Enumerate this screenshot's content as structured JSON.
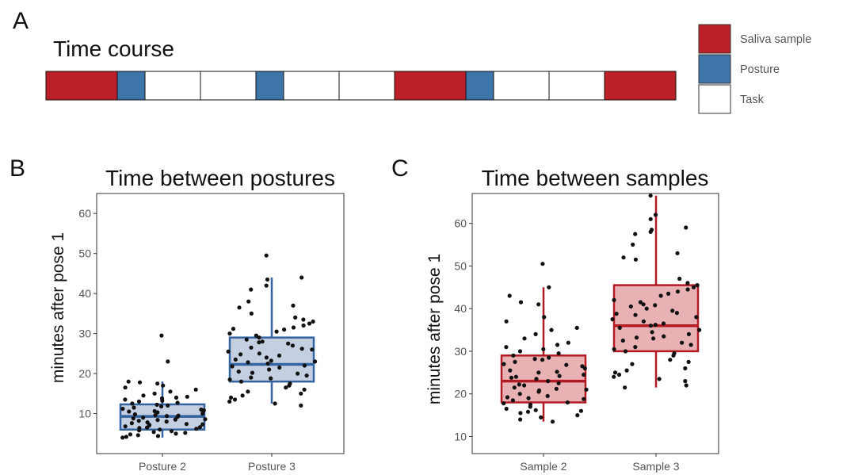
{
  "colors": {
    "saliva": "#bb1f28",
    "posture": "#3e75a8",
    "task": "#ffffff",
    "box_blue_fill": "#c4cfe2",
    "box_blue_line": "#3464a0",
    "box_red_fill": "#e8b2b5",
    "box_red_line": "#b31b24",
    "dot": "#111111",
    "frame": "#333333"
  },
  "panel_a": {
    "letter": "A",
    "title": "Time course",
    "sequence": [
      "Saliva sample",
      "Posture",
      "Task",
      "Task",
      "Posture",
      "Task",
      "Task",
      "Saliva sample",
      "Posture",
      "Task",
      "Task",
      "Saliva sample"
    ],
    "legend": [
      {
        "label": "Saliva sample",
        "color_key": "saliva"
      },
      {
        "label": "Posture",
        "color_key": "posture"
      },
      {
        "label": "Task",
        "color_key": "task"
      }
    ]
  },
  "chart_data": [
    {
      "type": "box",
      "panel": "B",
      "title": "Time between postures",
      "ylabel": "minutes after pose 1",
      "xlabel": "",
      "ylim": [
        0,
        65
      ],
      "yticks": [
        10,
        20,
        30,
        40,
        50,
        60
      ],
      "categories": [
        "Posture 2",
        "Posture 3"
      ],
      "boxes": [
        {
          "category": "Posture 2",
          "min": 4,
          "q1": 6,
          "median": 9.3,
          "q3": 12.3,
          "max": 18
        },
        {
          "category": "Posture 3",
          "min": 12.5,
          "q1": 18,
          "median": 22.3,
          "q3": 29,
          "max": 44
        }
      ],
      "points": [
        [
          29.5,
          23,
          18,
          17.8,
          17.5,
          17,
          16.5,
          16,
          15.5,
          15,
          14.5,
          14.2,
          14,
          13.5,
          13.2,
          13,
          12.7,
          12.5,
          12,
          11.8,
          11.5,
          11.2,
          11,
          10.8,
          10.5,
          10.3,
          10,
          9.8,
          9.6,
          9.4,
          9.2,
          9,
          8.8,
          8.6,
          8.4,
          8.2,
          8,
          7.8,
          7.6,
          7.4,
          7.2,
          7,
          6.8,
          6.6,
          6.4,
          6.2,
          6,
          5.8,
          5.6,
          5.4,
          5.2,
          5,
          4.8,
          4.6,
          4.4,
          4.2,
          4,
          10.6,
          9.5,
          8.5,
          7.3,
          6.5,
          12.2,
          13.8
        ],
        [
          49.5,
          44,
          43.5,
          42,
          41,
          38,
          37,
          36.5,
          35,
          34,
          33.5,
          33,
          32.5,
          32,
          31.5,
          31,
          30.5,
          30,
          29.5,
          29,
          28.5,
          28,
          27.5,
          27,
          26.5,
          26,
          25.5,
          25,
          24.5,
          24,
          23.5,
          23,
          22.5,
          22,
          21.5,
          21,
          20.5,
          20,
          19.5,
          19,
          18.5,
          18,
          17.5,
          17,
          16.5,
          16,
          15.5,
          15,
          14.5,
          14,
          13.5,
          13,
          12.5,
          12,
          26.2,
          24.8,
          23.2,
          21.8,
          20.2,
          18.8,
          31.2,
          27.8,
          22.8
        ]
      ]
    },
    {
      "type": "box",
      "panel": "C",
      "title": "Time between samples",
      "ylabel": "minutes after pose 1",
      "xlabel": "",
      "ylim": [
        6,
        67
      ],
      "yticks": [
        10,
        20,
        30,
        40,
        50,
        60
      ],
      "categories": [
        "Sample 2",
        "Sample 3"
      ],
      "boxes": [
        {
          "category": "Sample 2",
          "min": 13.5,
          "q1": 18,
          "median": 23,
          "q3": 29,
          "max": 45
        },
        {
          "category": "Sample 3",
          "min": 21.5,
          "q1": 30,
          "median": 36,
          "q3": 45.5,
          "max": 66.5
        }
      ],
      "points": [
        [
          50.5,
          45,
          43,
          41.5,
          41,
          38,
          37,
          35.5,
          35,
          34,
          33,
          32,
          31.5,
          31,
          30.5,
          30,
          29.5,
          29,
          28.5,
          28,
          27.5,
          27,
          26.5,
          26,
          25.5,
          25,
          24.5,
          24,
          23.5,
          23,
          22.5,
          22,
          21.5,
          21,
          20.5,
          20,
          19.5,
          19,
          18.5,
          18,
          17.5,
          17,
          16.5,
          16,
          15.5,
          15,
          14.5,
          14,
          13.5,
          28.2,
          26.8,
          25.2,
          23.8,
          22.2,
          20.8,
          19.2,
          17.8,
          16.2,
          24.2,
          21.2,
          18.8,
          15.8
        ],
        [
          66.5,
          62,
          61,
          59,
          58.5,
          58,
          57.5,
          55,
          53,
          52,
          51.5,
          47,
          46,
          45.5,
          45,
          44.5,
          44,
          43.5,
          43,
          42,
          41.5,
          41,
          40.5,
          40,
          39.5,
          39,
          38.5,
          38,
          37.5,
          37,
          36.5,
          36,
          35.5,
          35,
          34.5,
          34,
          33.5,
          33,
          32.5,
          32,
          31.5,
          31,
          30.5,
          30,
          29.5,
          29,
          28,
          27.5,
          27,
          26,
          25.5,
          25,
          24.5,
          24,
          23.5,
          23,
          22,
          21.5,
          36.2,
          38.8,
          33.2,
          40.8
        ]
      ]
    }
  ]
}
